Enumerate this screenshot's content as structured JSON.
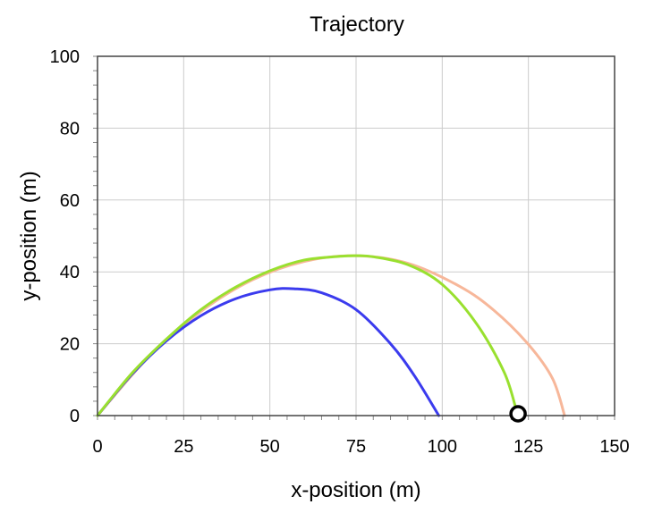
{
  "chart_data": {
    "type": "line",
    "title": "Trajectory",
    "xlabel": "x-position (m)",
    "ylabel": "y-position (m)",
    "xlim": [
      0,
      150
    ],
    "ylim": [
      0,
      100
    ],
    "xticks": [
      "0",
      "25",
      "50",
      "75",
      "100",
      "125",
      "150"
    ],
    "yticks": [
      "0",
      "20",
      "40",
      "60",
      "80",
      "100"
    ],
    "grid": true,
    "series": [
      {
        "color": "#3b3bee",
        "x": [
          0,
          10,
          20,
          30,
          40,
          50,
          57,
          65,
          75,
          85,
          92,
          99
        ],
        "y": [
          0,
          11.5,
          20.8,
          27.8,
          32.5,
          35.0,
          35.3,
          34.2,
          29.5,
          20.0,
          11.0,
          0
        ]
      },
      {
        "color": "#99e02f",
        "x": [
          0,
          10,
          20,
          30,
          40,
          50,
          60,
          70,
          75,
          80,
          90,
          100,
          110,
          118,
          121.5
        ],
        "y": [
          0,
          11.8,
          21.3,
          29.5,
          35.7,
          40.3,
          43.3,
          44.3,
          44.5,
          44.2,
          42.0,
          36.5,
          25.5,
          12.0,
          1.5
        ]
      },
      {
        "color": "#f7b79a",
        "x": [
          0,
          15,
          30,
          45,
          60,
          75,
          90,
          105,
          115,
          125,
          132,
          135.5
        ],
        "y": [
          0,
          16.5,
          29.0,
          37.8,
          42.9,
          44.5,
          42.4,
          36.0,
          29.3,
          19.8,
          10.3,
          0
        ]
      }
    ],
    "marker": {
      "x": 122,
      "y": 0.5,
      "shape": "open-circle",
      "color": "#000000"
    }
  }
}
